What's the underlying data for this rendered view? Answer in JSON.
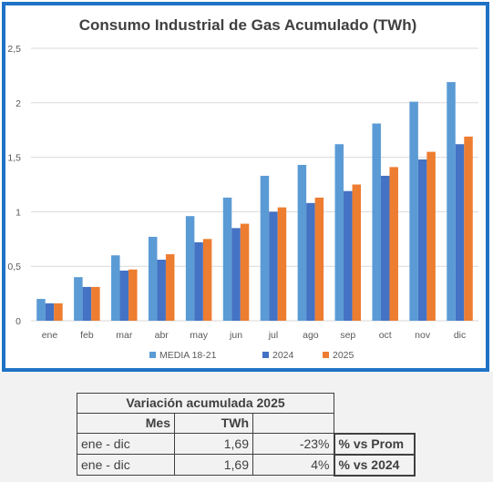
{
  "chart_data": {
    "type": "bar",
    "title": "Consumo Industrial de Gas Acumulado (TWh)",
    "categories": [
      "ene",
      "feb",
      "mar",
      "abr",
      "may",
      "jun",
      "jul",
      "ago",
      "sep",
      "oct",
      "nov",
      "dic"
    ],
    "ylim": [
      0,
      2.5
    ],
    "yticks": [
      "0",
      "0,5",
      "1",
      "1,5",
      "2",
      "2,5"
    ],
    "grid": true,
    "legend": "bottom",
    "series": [
      {
        "name": "MEDIA 18-21",
        "color": "#5b9bd5",
        "values": [
          0.2,
          0.4,
          0.6,
          0.77,
          0.96,
          1.13,
          1.33,
          1.43,
          1.62,
          1.81,
          2.01,
          2.19
        ]
      },
      {
        "name": "2024",
        "color": "#4472c4",
        "values": [
          0.16,
          0.31,
          0.46,
          0.56,
          0.72,
          0.85,
          1.0,
          1.08,
          1.19,
          1.33,
          1.48,
          1.62
        ]
      },
      {
        "name": "2025",
        "color": "#ed7d31",
        "values": [
          0.16,
          0.31,
          0.47,
          0.61,
          0.75,
          0.89,
          1.04,
          1.13,
          1.25,
          1.41,
          1.55,
          1.69
        ]
      }
    ]
  },
  "table": {
    "title": "Variación acumulada 2025",
    "headers": {
      "mes": "Mes",
      "twh": "TWh"
    },
    "rows": [
      {
        "mes": "ene - dic",
        "twh": "1,69",
        "pct": "-23%",
        "label": "% vs Prom"
      },
      {
        "mes": "ene - dic",
        "twh": "1,69",
        "pct": "4%",
        "label": "% vs 2024"
      }
    ]
  }
}
